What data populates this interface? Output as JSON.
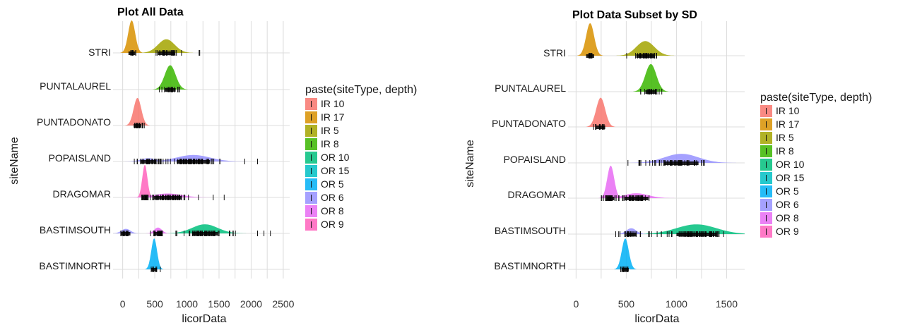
{
  "legend": {
    "title": "paste(siteType, depth)",
    "entries": [
      {
        "label": "IR 10",
        "color": "#F8766D"
      },
      {
        "label": "IR 17",
        "color": "#D89000"
      },
      {
        "label": "IR 5",
        "color": "#A3A500"
      },
      {
        "label": "IR 8",
        "color": "#39B600"
      },
      {
        "label": "OR 10",
        "color": "#00BF7D"
      },
      {
        "label": "OR 15",
        "color": "#00BFC4"
      },
      {
        "label": "OR 5",
        "color": "#00B0F6"
      },
      {
        "label": "OR 6",
        "color": "#9590FF"
      },
      {
        "label": "OR 8",
        "color": "#E76BF3"
      },
      {
        "label": "OR 9",
        "color": "#FF62BC"
      }
    ]
  },
  "chart_data": [
    {
      "type": "ridgeline",
      "title": "Plot All Data",
      "xlabel": "licorData",
      "ylabel": "siteName",
      "xlim": [
        -150,
        2600
      ],
      "xticks": [
        0,
        500,
        1000,
        1500,
        2000,
        2500
      ],
      "categories": [
        "STRI",
        "PUNTALAUREL",
        "PUNTADONATO",
        "POPAISLAND",
        "DRAGOMAR",
        "BASTIMSOUTH",
        "BASTIMNORTH"
      ],
      "series": [
        {
          "site": "STRI",
          "group": "IR 17",
          "mean": 140,
          "sd": 55,
          "peak": 1.0,
          "rug_min": 90,
          "rug_max": 220,
          "rug_extra": []
        },
        {
          "site": "STRI",
          "group": "IR 5",
          "mean": 680,
          "sd": 130,
          "peak": 0.42,
          "rug_min": 480,
          "rug_max": 950,
          "rug_extra": [
            1190,
            1200
          ]
        },
        {
          "site": "PUNTALAUREL",
          "group": "IR 8",
          "mean": 740,
          "sd": 85,
          "peak": 0.75,
          "rug_min": 560,
          "rug_max": 950,
          "rug_extra": []
        },
        {
          "site": "PUNTADONATO",
          "group": "IR 10",
          "mean": 230,
          "sd": 60,
          "peak": 0.85,
          "rug_min": 150,
          "rug_max": 500,
          "rug_extra": []
        },
        {
          "site": "POPAISLAND",
          "group": "OR 6",
          "mean": 1100,
          "sd": 260,
          "peak": 0.2,
          "rug_min": 180,
          "rug_max": 1750,
          "rug_extra": [
            1900,
            2100
          ]
        },
        {
          "site": "POPAISLAND",
          "group": "OR 6",
          "mean": 400,
          "sd": 120,
          "peak": 0.1,
          "rug_min": 180,
          "rug_max": 600,
          "rug_extra": []
        },
        {
          "site": "DRAGOMAR",
          "group": "OR 9",
          "mean": 345,
          "sd": 40,
          "peak": 1.0,
          "rug_min": 250,
          "rug_max": 1100,
          "rug_extra": [
            1180,
            1410,
            1580
          ]
        },
        {
          "site": "DRAGOMAR",
          "group": "OR 8",
          "mean": 700,
          "sd": 220,
          "peak": 0.12,
          "rug_min": 250,
          "rug_max": 1050,
          "rug_extra": []
        },
        {
          "site": "BASTIMSOUTH",
          "group": "OR 10",
          "mean": 1280,
          "sd": 200,
          "peak": 0.28,
          "rug_min": 400,
          "rug_max": 1820,
          "rug_extra": [
            -30,
            20,
            2100,
            2200,
            2300
          ]
        },
        {
          "site": "BASTIMSOUTH",
          "group": "OR 6",
          "mean": 50,
          "sd": 70,
          "peak": 0.14,
          "rug_min": -50,
          "rug_max": 150,
          "rug_extra": []
        },
        {
          "site": "BASTIMSOUTH",
          "group": "OR 8",
          "mean": 550,
          "sd": 60,
          "peak": 0.18,
          "rug_min": 450,
          "rug_max": 650,
          "rug_extra": []
        },
        {
          "site": "BASTIMNORTH",
          "group": "OR 5",
          "mean": 490,
          "sd": 45,
          "peak": 0.95,
          "rug_min": 430,
          "rug_max": 600,
          "rug_extra": []
        }
      ]
    },
    {
      "type": "ridgeline",
      "title": "Plot Data Subset by SD",
      "xlabel": "licorData",
      "ylabel": "siteName",
      "xlim": [
        -80,
        1680
      ],
      "xticks": [
        0,
        500,
        1000,
        1500
      ],
      "categories": [
        "STRI",
        "PUNTALAUREL",
        "PUNTADONATO",
        "POPAISLAND",
        "DRAGOMAR",
        "BASTIMSOUTH",
        "BASTIMNORTH"
      ],
      "series": [
        {
          "site": "STRI",
          "group": "IR 17",
          "mean": 140,
          "sd": 40,
          "peak": 1.0,
          "rug_min": 100,
          "rug_max": 180,
          "rug_extra": []
        },
        {
          "site": "STRI",
          "group": "IR 5",
          "mean": 690,
          "sd": 90,
          "peak": 0.45,
          "rug_min": 500,
          "rug_max": 880,
          "rug_extra": []
        },
        {
          "site": "PUNTALAUREL",
          "group": "IR 8",
          "mean": 745,
          "sd": 55,
          "peak": 0.85,
          "rug_min": 640,
          "rug_max": 880,
          "rug_extra": []
        },
        {
          "site": "PUNTADONATO",
          "group": "IR 10",
          "mean": 245,
          "sd": 45,
          "peak": 0.9,
          "rug_min": 170,
          "rug_max": 330,
          "rug_extra": []
        },
        {
          "site": "POPAISLAND",
          "group": "OR 6",
          "mean": 1050,
          "sd": 170,
          "peak": 0.28,
          "rug_min": 510,
          "rug_max": 1280,
          "rug_extra": []
        },
        {
          "site": "DRAGOMAR",
          "group": "OR 8",
          "mean": 345,
          "sd": 35,
          "peak": 1.0,
          "rug_min": 250,
          "rug_max": 750,
          "rug_extra": []
        },
        {
          "site": "DRAGOMAR",
          "group": "OR 8",
          "mean": 600,
          "sd": 120,
          "peak": 0.15,
          "rug_min": 250,
          "rug_max": 750,
          "rug_extra": []
        },
        {
          "site": "BASTIMSOUTH",
          "group": "OR 10",
          "mean": 1200,
          "sd": 200,
          "peak": 0.3,
          "rug_min": 380,
          "rug_max": 1520,
          "rug_extra": []
        },
        {
          "site": "BASTIMSOUTH",
          "group": "OR 6",
          "mean": 550,
          "sd": 50,
          "peak": 0.18,
          "rug_min": 450,
          "rug_max": 650,
          "rug_extra": []
        },
        {
          "site": "BASTIMNORTH",
          "group": "OR 5",
          "mean": 490,
          "sd": 35,
          "peak": 0.95,
          "rug_min": 430,
          "rug_max": 560,
          "rug_extra": []
        }
      ]
    }
  ]
}
